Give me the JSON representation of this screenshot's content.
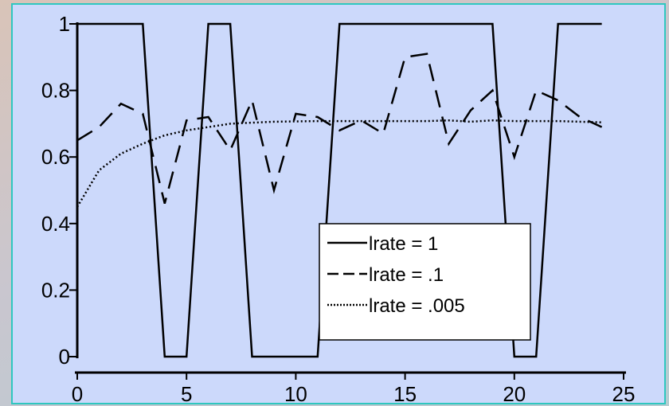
{
  "chart_data": {
    "type": "line",
    "title": "",
    "xlabel": "",
    "ylabel": "",
    "xlim": [
      0,
      25
    ],
    "ylim": [
      0,
      1
    ],
    "x_ticks": [
      "0",
      "5",
      "10",
      "15",
      "20",
      "25"
    ],
    "y_ticks": [
      "0",
      "0.2",
      "0.4",
      "0.6",
      "0.8",
      "1"
    ],
    "grid": false,
    "legend_position": "lower-right",
    "x": [
      0,
      1,
      2,
      3,
      4,
      5,
      6,
      7,
      8,
      9,
      10,
      11,
      12,
      13,
      14,
      15,
      16,
      17,
      18,
      19,
      20,
      21,
      22,
      23,
      24
    ],
    "series": [
      {
        "name": "lrate = 1",
        "style": "solid",
        "x": [
          0,
          1,
          2,
          3,
          4,
          5,
          6,
          7,
          8,
          9,
          10,
          11,
          12,
          13,
          14,
          15,
          16,
          17,
          18,
          19,
          20,
          21,
          22,
          23,
          24
        ],
        "values": [
          1,
          1,
          1,
          1,
          0,
          0,
          1,
          1,
          0,
          0,
          0,
          0,
          1,
          1,
          1,
          1,
          1,
          1,
          1,
          1,
          0,
          0,
          1,
          1,
          1
        ]
      },
      {
        "name": "lrate = .1",
        "style": "dashed",
        "x": [
          0,
          1,
          2,
          3,
          4,
          5,
          6,
          7,
          8,
          9,
          10,
          11,
          12,
          13,
          14,
          15,
          16,
          17,
          18,
          19,
          20,
          21,
          22,
          23,
          24
        ],
        "values": [
          0.65,
          0.69,
          0.76,
          0.73,
          0.46,
          0.71,
          0.72,
          0.62,
          0.77,
          0.5,
          0.73,
          0.72,
          0.68,
          0.71,
          0.67,
          0.9,
          0.91,
          0.64,
          0.74,
          0.8,
          0.6,
          0.8,
          0.77,
          0.72,
          0.69
        ]
      },
      {
        "name": "lrate = .005",
        "style": "dotted",
        "x": [
          0,
          1,
          2,
          3,
          4,
          5,
          6,
          7,
          8,
          9,
          10,
          11,
          12,
          13,
          14,
          15,
          16,
          17,
          18,
          19,
          20,
          21,
          22,
          23,
          24
        ],
        "values": [
          0.45,
          0.56,
          0.61,
          0.64,
          0.665,
          0.68,
          0.69,
          0.7,
          0.703,
          0.706,
          0.707,
          0.708,
          0.708,
          0.708,
          0.708,
          0.708,
          0.708,
          0.71,
          0.706,
          0.71,
          0.708,
          0.708,
          0.708,
          0.706,
          0.704
        ]
      }
    ]
  }
}
